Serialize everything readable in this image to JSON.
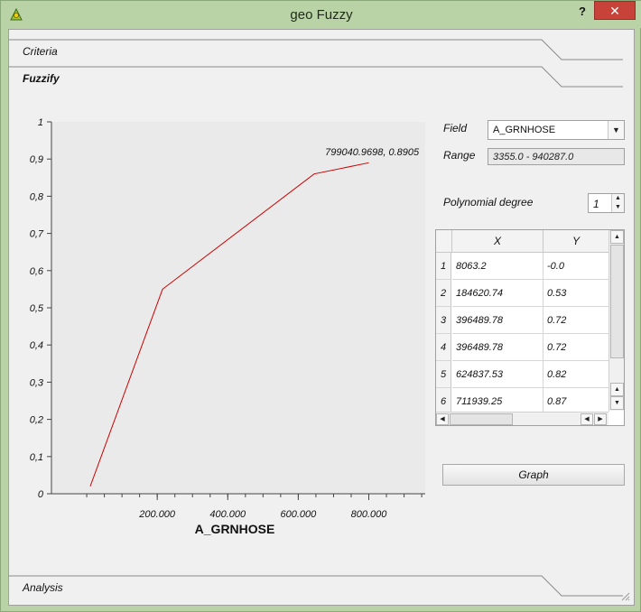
{
  "window": {
    "title": "geo Fuzzy",
    "help_label": "?",
    "close_label": "✕"
  },
  "sections": {
    "criteria": "Criteria",
    "fuzzify": "Fuzzify",
    "analysis": "Analysis"
  },
  "form": {
    "field_label": "Field",
    "field_value": "A_GRNHOSE",
    "range_label": "Range",
    "range_value": "3355.0 - 940287.0",
    "poly_label": "Polynomial degree",
    "poly_value": "1",
    "graph_button": "Graph"
  },
  "table": {
    "columns": [
      "X",
      "Y"
    ],
    "rows": [
      {
        "n": "1",
        "x": "8063.2",
        "y": "-0.0"
      },
      {
        "n": "2",
        "x": "184620.74",
        "y": "0.53"
      },
      {
        "n": "3",
        "x": "396489.78",
        "y": "0.72"
      },
      {
        "n": "4",
        "x": "396489.78",
        "y": "0.72"
      },
      {
        "n": "5",
        "x": "624837.53",
        "y": "0.82"
      },
      {
        "n": "6",
        "x": "711939.25",
        "y": "0.87"
      }
    ]
  },
  "icons": {
    "app": "qgis-plugin-icon",
    "combo_arrow": "chevron-down-icon",
    "spin_up": "triangle-up-icon",
    "spin_down": "triangle-down-icon"
  },
  "colors": {
    "curve": "#cc0000",
    "title_bar": "#b9d3a6",
    "close": "#c7433a"
  },
  "chart_data": {
    "type": "line",
    "xlabel": "A_GRNHOSE",
    "ylabel": "",
    "xlim": [
      -100000,
      960000
    ],
    "ylim": [
      0,
      1
    ],
    "xticks": [
      200000,
      400000,
      600000,
      800000
    ],
    "xtick_labels": [
      "200.000",
      "400.000",
      "600.000",
      "800.000"
    ],
    "yticks": [
      0,
      0.1,
      0.2,
      0.3,
      0.4,
      0.5,
      0.6,
      0.7,
      0.8,
      0.9,
      1
    ],
    "ytick_labels": [
      "0",
      "0,1",
      "0,2",
      "0,3",
      "0,4",
      "0,5",
      "0,6",
      "0,7",
      "0,8",
      "0,9",
      "1"
    ],
    "series": [
      {
        "x": [
          10000,
          215000,
          645000,
          800000
        ],
        "y": [
          0.02,
          0.55,
          0.86,
          0.89
        ]
      }
    ],
    "annotation": {
      "text": "799040.9698, 0.8905",
      "x": 799040.9698,
      "y": 0.8905
    },
    "grid": false
  }
}
